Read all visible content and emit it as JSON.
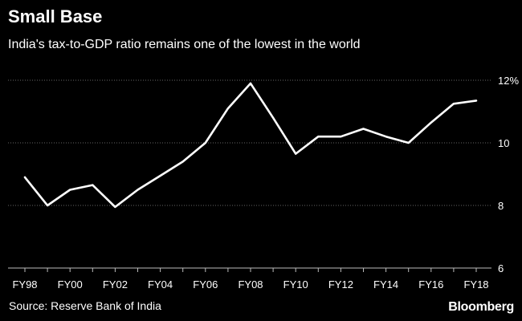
{
  "title": "Small Base",
  "subtitle": "India's tax-to-GDP ratio remains one of the lowest in the world",
  "source": "Source: Reserve Bank of India",
  "brand": "Bloomberg",
  "colors": {
    "background": "#000000",
    "line": "#ffffff",
    "grid": "#666666",
    "text": "#ffffff"
  },
  "chart_data": {
    "type": "line",
    "title": "Small Base",
    "subtitle": "India's tax-to-GDP ratio remains one of the lowest in the world",
    "xlabel": "",
    "ylabel": "",
    "x": [
      "FY98",
      "FY99",
      "FY00",
      "FY01",
      "FY02",
      "FY03",
      "FY04",
      "FY05",
      "FY06",
      "FY07",
      "FY08",
      "FY09",
      "FY10",
      "FY11",
      "FY12",
      "FY13",
      "FY14",
      "FY15",
      "FY16",
      "FY17",
      "FY18"
    ],
    "x_tick_labels": [
      "FY98",
      "FY00",
      "FY02",
      "FY04",
      "FY06",
      "FY08",
      "FY10",
      "FY12",
      "FY14",
      "FY16",
      "FY18"
    ],
    "series": [
      {
        "name": "Tax-to-GDP ratio",
        "values": [
          8.9,
          8.0,
          8.5,
          8.65,
          7.95,
          8.5,
          8.95,
          9.4,
          10.0,
          11.1,
          11.9,
          10.8,
          9.65,
          10.2,
          10.2,
          10.45,
          10.2,
          10.0,
          10.65,
          11.25,
          11.35
        ]
      }
    ],
    "ylim": [
      6,
      12
    ],
    "y_ticks": [
      {
        "value": 6,
        "label": "6"
      },
      {
        "value": 8,
        "label": "8"
      },
      {
        "value": 10,
        "label": "10"
      },
      {
        "value": 12,
        "label": "12%"
      }
    ],
    "grid": true,
    "legend": "none"
  }
}
